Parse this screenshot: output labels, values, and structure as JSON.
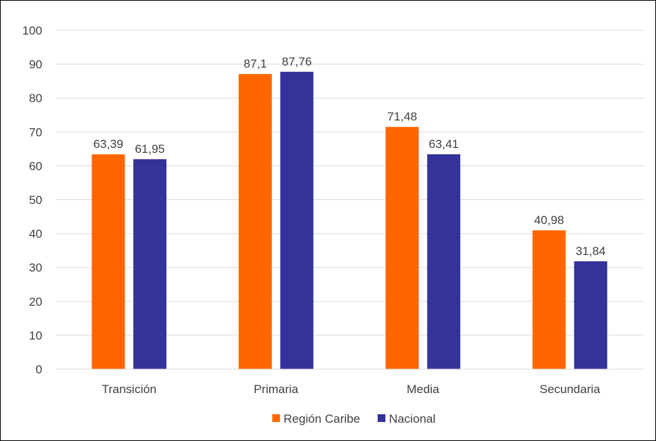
{
  "chart_data": {
    "type": "bar",
    "title": "",
    "xlabel": "",
    "ylabel": "",
    "categories": [
      "Transición",
      "Primaria",
      "Media",
      "Secundaria"
    ],
    "series": [
      {
        "name": "Región Caribe",
        "values": [
          63.39,
          87.1,
          71.48,
          40.98
        ],
        "labels": [
          "63,39",
          "87,1",
          "71,48",
          "40,98"
        ],
        "color": "#FF6600"
      },
      {
        "name": "Nacional",
        "values": [
          61.95,
          87.76,
          63.41,
          31.84
        ],
        "labels": [
          "61,95",
          "87,76",
          "63,41",
          "31,84"
        ],
        "color": "#333399"
      }
    ],
    "ylim": [
      0,
      100
    ],
    "yticks": [
      "0",
      "10",
      "20",
      "30",
      "40",
      "50",
      "60",
      "70",
      "80",
      "90",
      "100"
    ],
    "grid": true,
    "gridColor": "#D9D9D9",
    "legend_position": "bottom"
  }
}
